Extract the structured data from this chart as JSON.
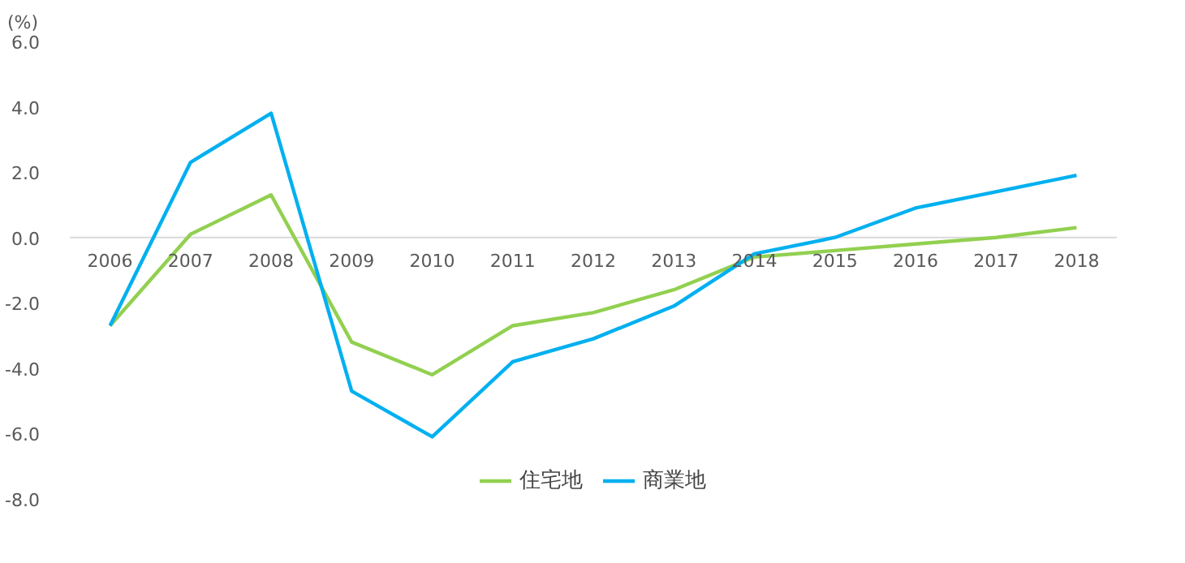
{
  "chart_data": {
    "type": "line",
    "ylabel": "(%)",
    "categories": [
      "2006",
      "2007",
      "2008",
      "2009",
      "2010",
      "2011",
      "2012",
      "2013",
      "2014",
      "2015",
      "2016",
      "2017",
      "2018"
    ],
    "series": [
      {
        "name": "住宅地",
        "color": "#92d050",
        "values": [
          -2.7,
          0.1,
          1.3,
          -3.2,
          -4.2,
          -2.7,
          -2.3,
          -1.6,
          -0.6,
          -0.4,
          -0.2,
          0.0,
          0.3
        ]
      },
      {
        "name": "商業地",
        "color": "#00b0f0",
        "values": [
          -2.7,
          2.3,
          3.8,
          -4.7,
          -6.1,
          -3.8,
          -3.1,
          -2.1,
          -0.5,
          0.0,
          0.9,
          1.4,
          1.9
        ]
      }
    ],
    "ylim": [
      -8,
      6
    ],
    "yticks": [
      {
        "value": -8,
        "label": "-8.0"
      },
      {
        "value": -6,
        "label": "-6.0"
      },
      {
        "value": -4,
        "label": "-4.0"
      },
      {
        "value": -2,
        "label": "-2.0"
      },
      {
        "value": 0,
        "label": "0.0"
      },
      {
        "value": 2,
        "label": "2.0"
      },
      {
        "value": 4,
        "label": "4.0"
      },
      {
        "value": 6,
        "label": "6.0"
      }
    ],
    "grid": false,
    "legend": "bottom",
    "marker": "none",
    "line_style": "solid"
  }
}
